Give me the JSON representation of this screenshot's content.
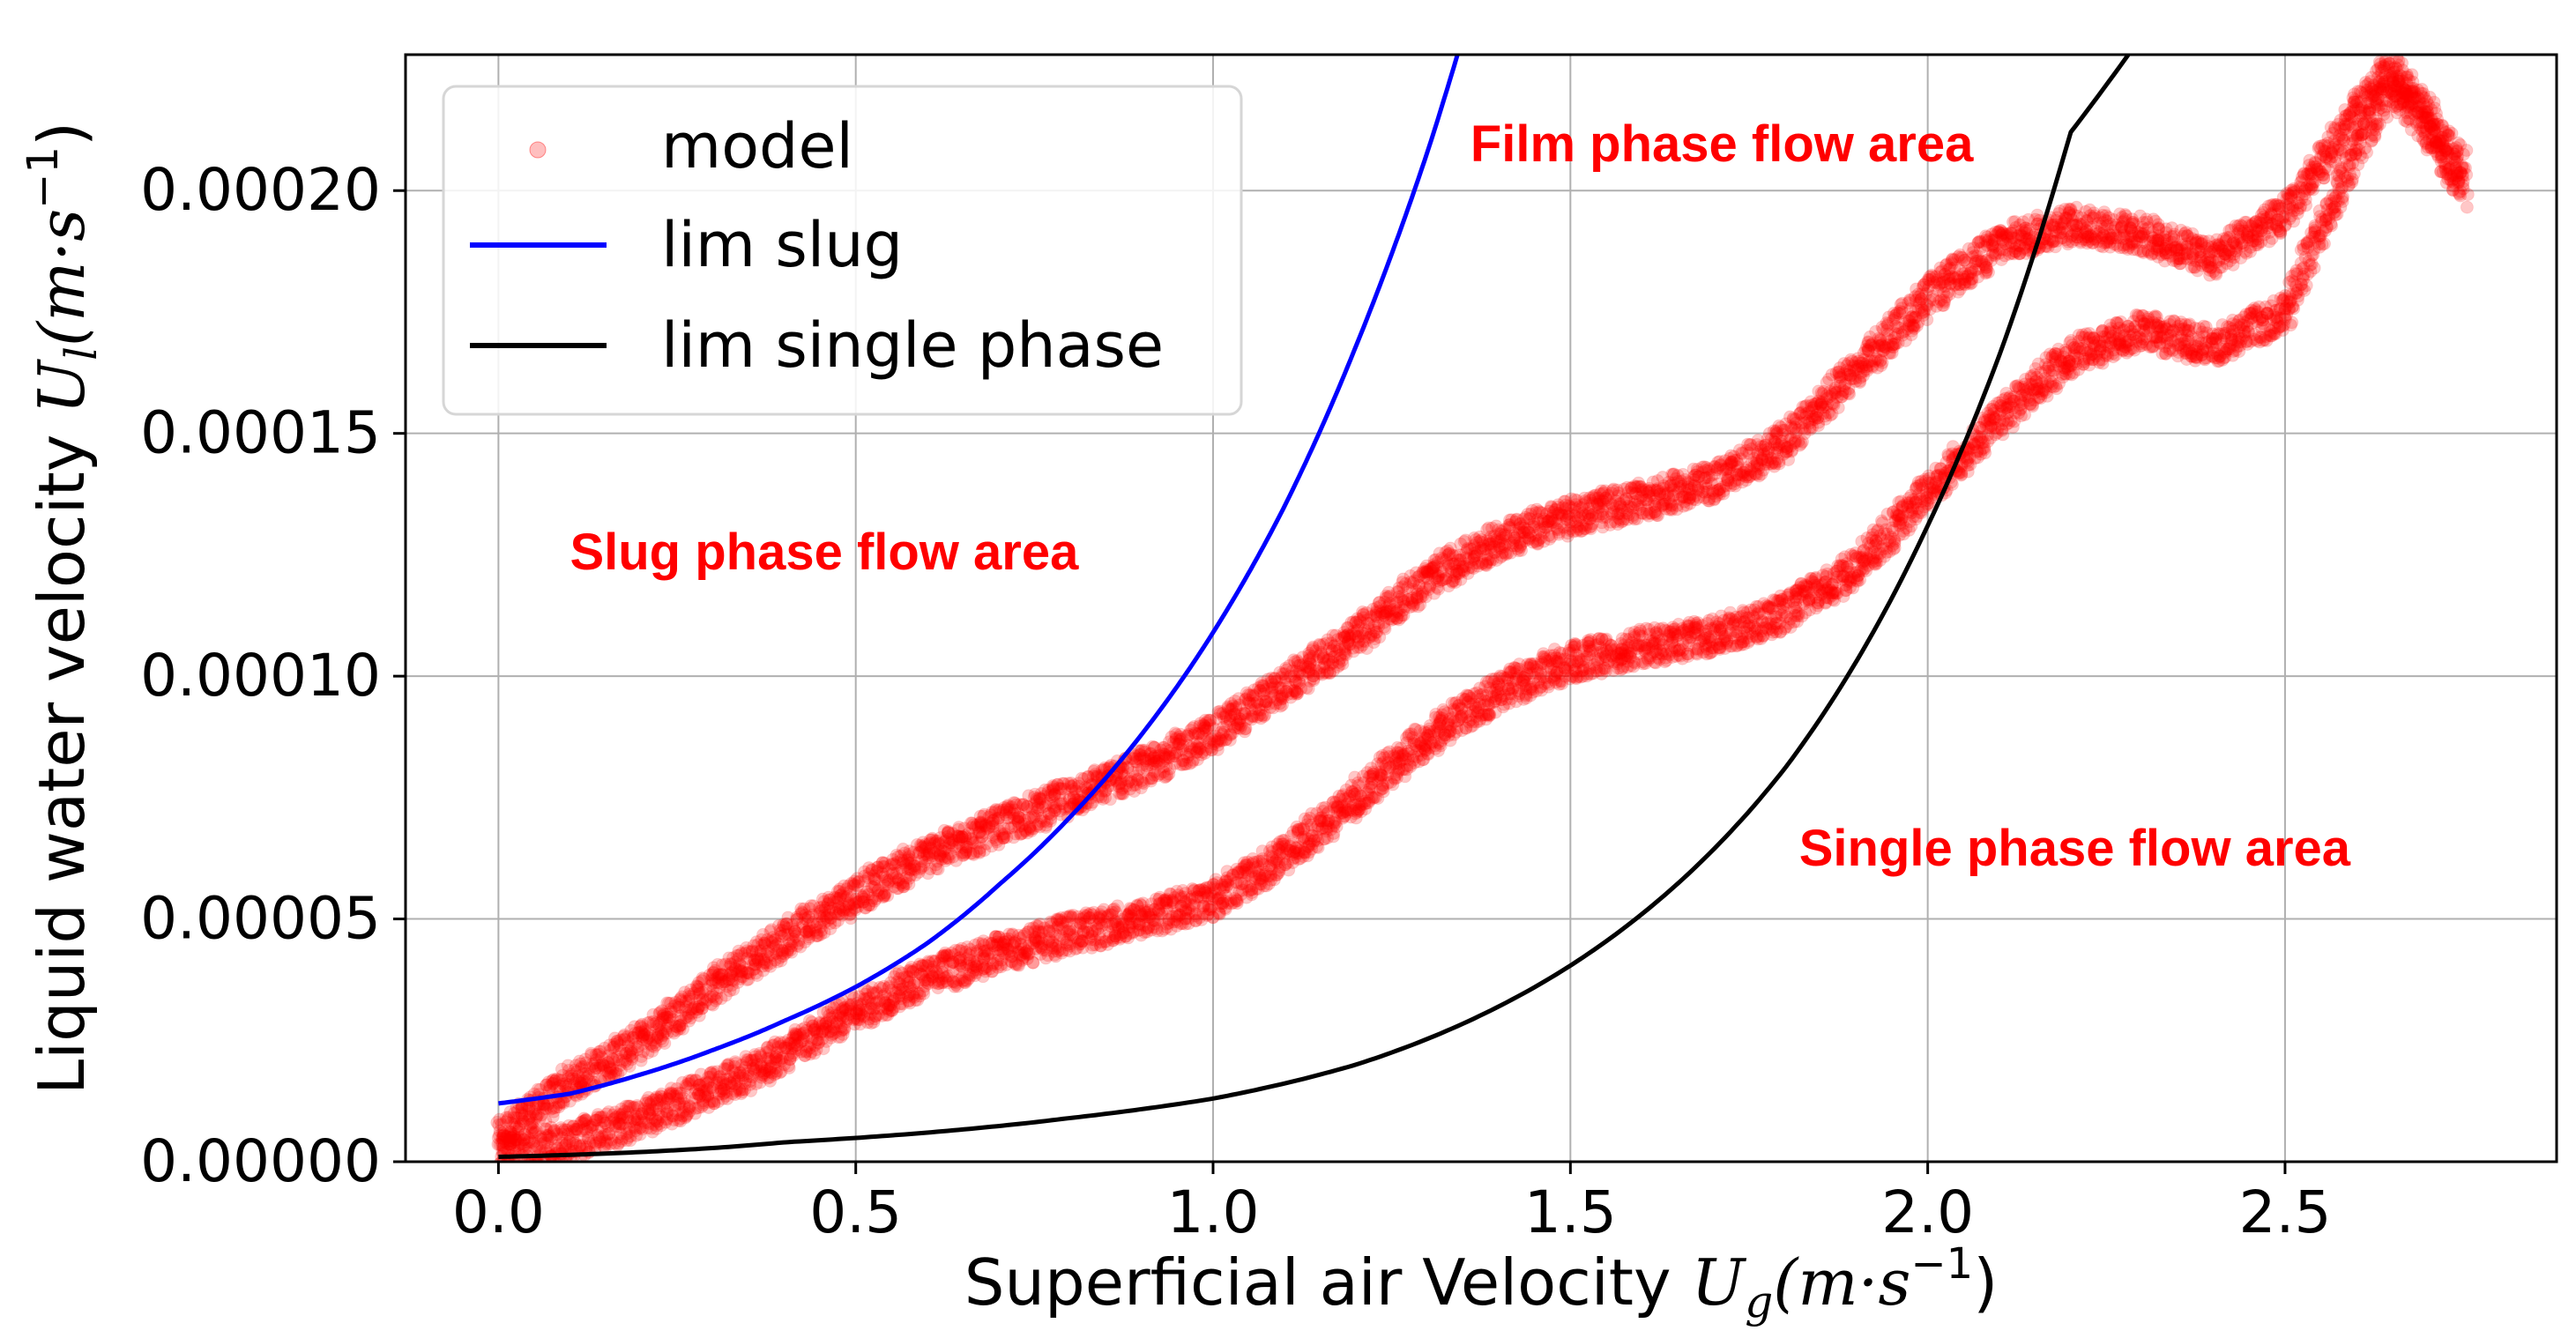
{
  "chart_data": {
    "type": "scatter",
    "title": "",
    "xlabel": "Superficial air Velocity",
    "xlabel_symbol": "U",
    "xlabel_sub": "g",
    "xlabel_unit_open": "(m·s",
    "xlabel_unit_exp": "−1",
    "xlabel_unit_close": ")",
    "ylabel": "Liquid water velocity",
    "ylabel_symbol": "U",
    "ylabel_sub": "l",
    "ylabel_unit_open": "(m·s",
    "ylabel_unit_exp": "−1",
    "ylabel_unit_close": ")",
    "xlim": [
      -0.13,
      2.88
    ],
    "ylim": [
      0,
      0.000228
    ],
    "xticks": [
      0.0,
      0.5,
      1.0,
      1.5,
      2.0,
      2.5
    ],
    "xtick_labels": [
      "0.0",
      "0.5",
      "1.0",
      "1.5",
      "2.0",
      "2.5"
    ],
    "yticks": [
      0,
      5e-05,
      0.0001,
      0.00015,
      0.0002
    ],
    "ytick_labels": [
      "0.00000",
      "0.00005",
      "0.00010",
      "0.00015",
      "0.00020"
    ],
    "grid": true,
    "legend_position": "top-left",
    "series": [
      {
        "name": "model",
        "kind": "scatter",
        "color": "#ff0000",
        "branches": [
          {
            "part": "upper",
            "x": [
              0.0,
              0.1,
              0.2,
              0.3,
              0.4,
              0.5,
              0.6,
              0.7,
              0.8,
              0.9,
              1.0,
              1.1,
              1.2,
              1.3,
              1.4,
              1.5,
              1.6,
              1.7,
              1.8,
              1.9,
              2.0,
              2.1,
              2.2,
              2.3,
              2.4,
              2.5,
              2.55,
              2.6,
              2.65,
              2.7,
              2.75
            ],
            "y": [
              5e-06,
              1.6e-05,
              2.5e-05,
              3.6e-05,
              4.6e-05,
              5.5e-05,
              6.3e-05,
              6.9e-05,
              7.5e-05,
              8.1e-05,
              8.8e-05,
              9.8e-05,
              0.000108,
              0.00012,
              0.000128,
              0.000133,
              0.000136,
              0.00014,
              0.000148,
              0.000163,
              0.000178,
              0.000189,
              0.000193,
              0.000191,
              0.000186,
              0.000195,
              0.000206,
              0.000216,
              0.000225,
              0.000215,
              0.000205
            ]
          },
          {
            "part": "lower",
            "x": [
              0.0,
              0.1,
              0.2,
              0.3,
              0.4,
              0.5,
              0.6,
              0.7,
              0.8,
              0.9,
              1.0,
              1.1,
              1.2,
              1.3,
              1.4,
              1.5,
              1.6,
              1.7,
              1.8,
              1.9,
              2.0,
              2.1,
              2.2,
              2.3,
              2.4,
              2.5,
              2.55,
              2.6,
              2.65,
              2.7,
              2.75
            ],
            "y": [
              2e-06,
              4e-06,
              9e-06,
              1.5e-05,
              2.2e-05,
              3.1e-05,
              3.8e-05,
              4.3e-05,
              4.7e-05,
              5e-05,
              5.4e-05,
              6.3e-05,
              7.5e-05,
              8.7e-05,
              9.7e-05,
              0.000103,
              0.000106,
              0.000108,
              0.000113,
              0.000122,
              0.000138,
              0.000153,
              0.000166,
              0.000171,
              0.000168,
              0.000175,
              0.000192,
              0.000208,
              0.000222,
              0.000212,
              0.0002
            ]
          }
        ]
      },
      {
        "name": "lim slug",
        "kind": "line",
        "color": "#0000ff",
        "x": [
          0.0,
          0.1,
          0.2,
          0.3,
          0.4,
          0.5,
          0.6,
          0.7,
          0.8,
          0.9,
          1.0,
          1.1,
          1.2,
          1.25,
          1.3,
          1.35
        ],
        "y": [
          1.2e-05,
          1.4e-05,
          1.8e-05,
          2.3e-05,
          2.9e-05,
          3.6e-05,
          4.5e-05,
          5.7e-05,
          7.1e-05,
          8.8e-05,
          0.000109,
          0.000135,
          0.000168,
          0.000187,
          0.000208,
          0.000232
        ]
      },
      {
        "name": "lim single phase",
        "kind": "line",
        "color": "#000000",
        "x": [
          0.0,
          0.2,
          0.4,
          0.6,
          0.8,
          1.0,
          1.2,
          1.4,
          1.6,
          1.8,
          2.0,
          2.1,
          2.2,
          2.3
        ],
        "y": [
          1e-06,
          2e-06,
          4e-06,
          6e-06,
          9e-06,
          1.3e-05,
          2e-05,
          3.2e-05,
          5.1e-05,
          8.1e-05,
          0.000131,
          0.000166,
          0.000212,
          0.000232
        ]
      }
    ],
    "annotations": [
      {
        "text": "Film phase flow area",
        "x": 1.36,
        "y": 0.000206,
        "color": "#ff0000"
      },
      {
        "text": "Slug phase flow area",
        "x": 0.1,
        "y": 0.000122,
        "color": "#ff0000"
      },
      {
        "text": "Single phase flow area",
        "x": 1.82,
        "y": 6.1e-05,
        "color": "#ff0000"
      }
    ]
  }
}
